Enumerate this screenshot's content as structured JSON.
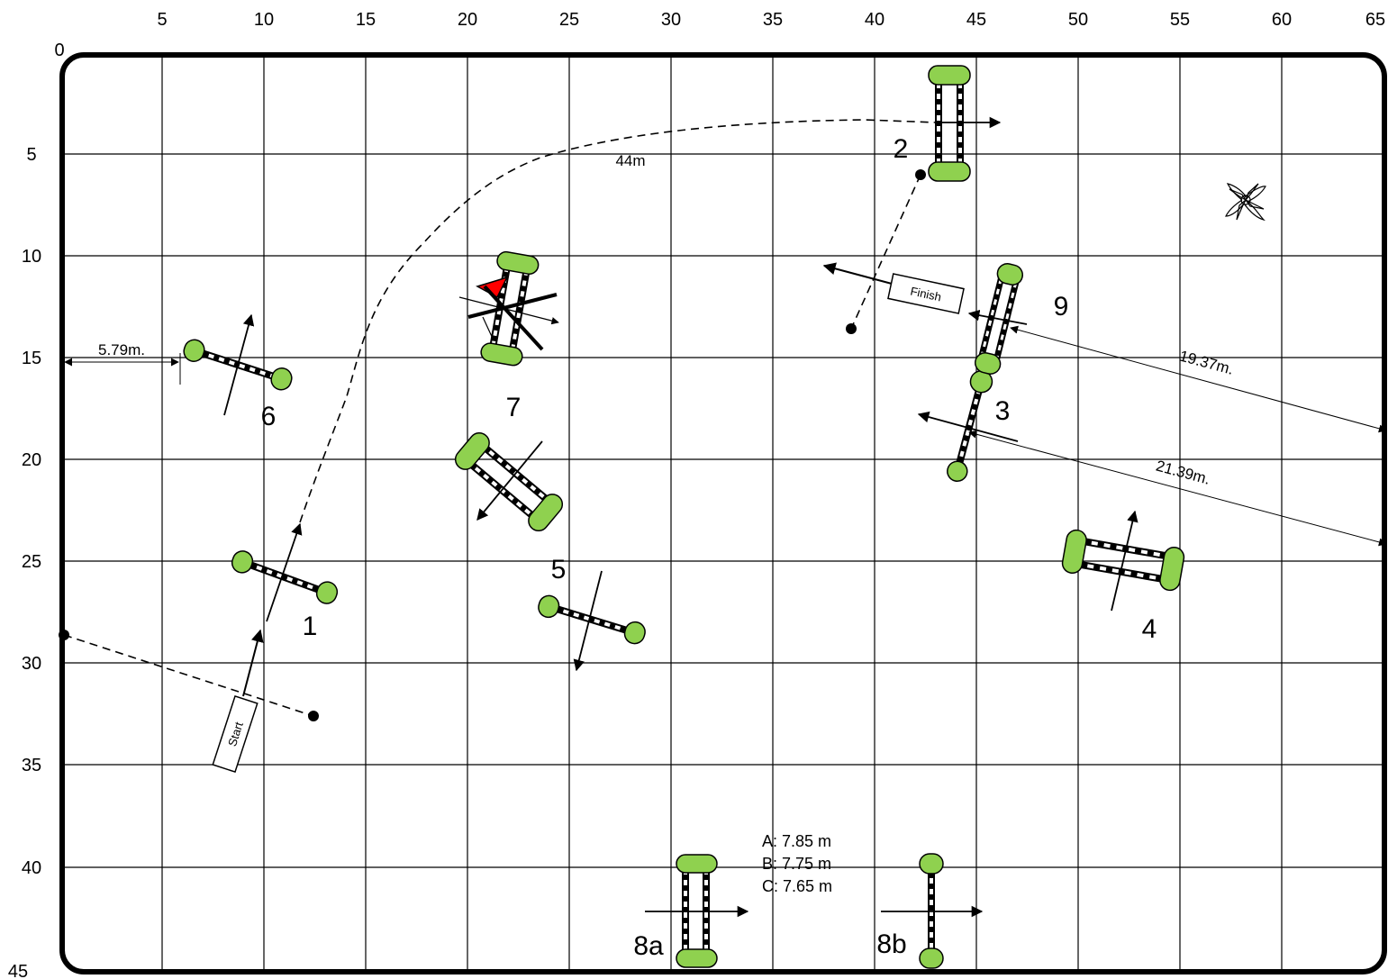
{
  "axes": {
    "x_ticks": [
      "0",
      "5",
      "10",
      "15",
      "20",
      "25",
      "30",
      "35",
      "40",
      "45",
      "50",
      "55",
      "60",
      "65"
    ],
    "y_ticks": [
      "5",
      "10",
      "15",
      "20",
      "25",
      "30",
      "35",
      "40",
      "45"
    ]
  },
  "jumps": {
    "j1": "1",
    "j2": "2",
    "j3": "3",
    "j4": "4",
    "j5": "5",
    "j6": "6",
    "j7": "7",
    "j8a": "8a",
    "j8b": "8b",
    "j9": "9"
  },
  "signs": {
    "start": "Start",
    "finish": "Finish"
  },
  "measurements": {
    "path_length": "44m",
    "wall_distance": "5.79m.",
    "d9": "19.37m.",
    "d3": "21.39m."
  },
  "distance_options": [
    "A: 7.85 m",
    "B: 7.75 m",
    "C: 7.65 m"
  ],
  "colors": {
    "pole_end": "#8fd14f",
    "flag": "#ff0000",
    "grid": "#000000"
  },
  "icons": [
    "compass-rose-icon"
  ]
}
